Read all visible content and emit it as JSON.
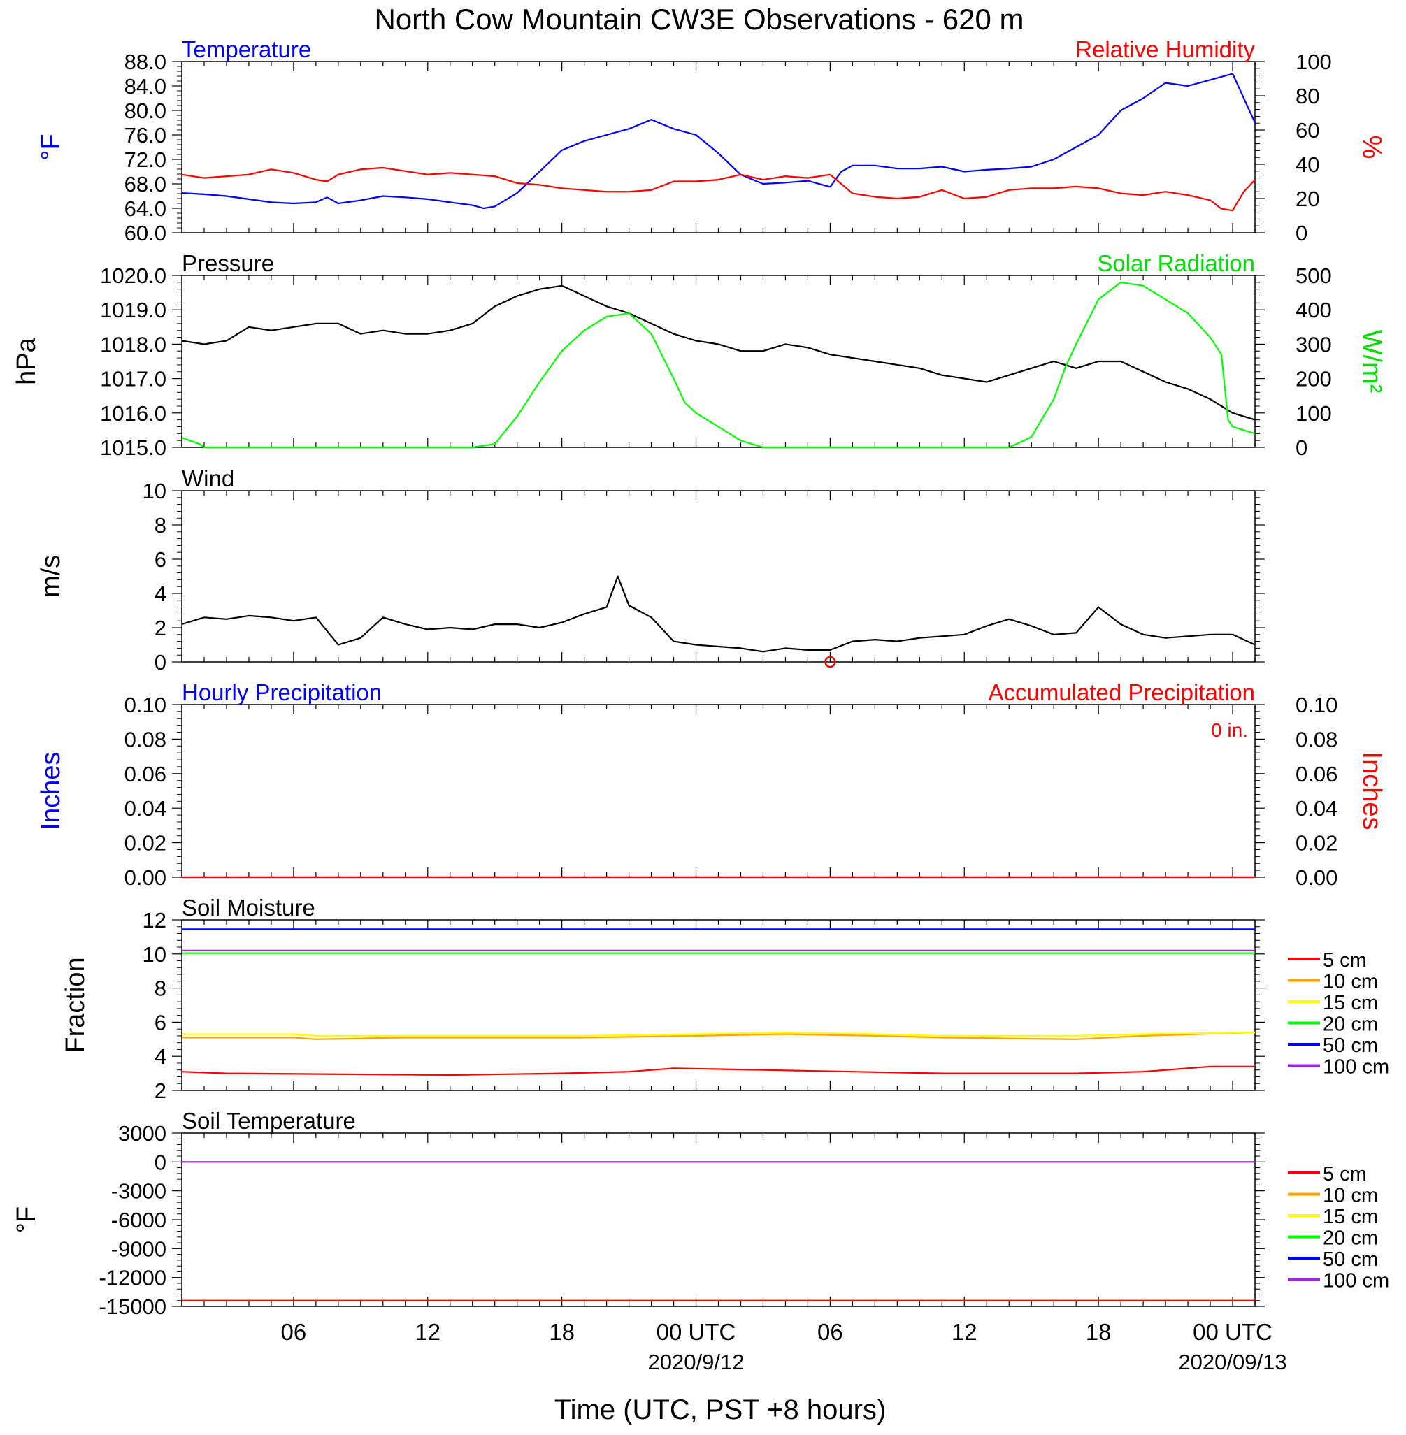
{
  "title": "North Cow Mountain CW3E Observations - 620 m",
  "xlabel": "Time (UTC, PST +8 hours)",
  "x_ticks": [
    {
      "label": "06",
      "hour": 6
    },
    {
      "label": "12",
      "hour": 12
    },
    {
      "label": "18",
      "hour": 18
    },
    {
      "label": "00 UTC",
      "hour": 24,
      "date": "2020/9/12"
    },
    {
      "label": "06",
      "hour": 30
    },
    {
      "label": "12",
      "hour": 36
    },
    {
      "label": "18",
      "hour": 42
    },
    {
      "label": "00 UTC",
      "hour": 48,
      "date": "2020/09/13"
    }
  ],
  "x_range_hours": [
    1,
    49
  ],
  "legend_soil": [
    "5 cm",
    "10 cm",
    "15 cm",
    "20 cm",
    "50 cm",
    "100 cm"
  ],
  "legend_colors": [
    "#ff0000",
    "#ffa500",
    "#ffff00",
    "#00ff00",
    "#0000ff",
    "#a020f0"
  ],
  "chart_data": [
    {
      "type": "line",
      "panel": "temperature-humidity",
      "left_title": "Temperature",
      "right_title": "Relative Humidity",
      "ylabel_left": "°F",
      "ylabel_right": "%",
      "ylim_left": [
        60,
        88
      ],
      "ylim_right": [
        0,
        100
      ],
      "yticks_left": [
        "60.0",
        "64.0",
        "68.0",
        "72.0",
        "76.0",
        "80.0",
        "84.0",
        "88.0"
      ],
      "yticks_right": [
        "0",
        "20",
        "40",
        "60",
        "80",
        "100"
      ],
      "series": [
        {
          "name": "Temperature",
          "color": "#0000ff",
          "axis": "left",
          "x": [
            1,
            2,
            3,
            4,
            5,
            6,
            7,
            7.5,
            8,
            9,
            10,
            11,
            12,
            13,
            14,
            14.5,
            15,
            16,
            17,
            18,
            19,
            20,
            21,
            22,
            23,
            24,
            25,
            26,
            27,
            28,
            29,
            30,
            30.5,
            31,
            32,
            33,
            34,
            35,
            36,
            37,
            38,
            39,
            40,
            41,
            42,
            43,
            44,
            45,
            46,
            47,
            48,
            48.5,
            49
          ],
          "y": [
            66.5,
            66.3,
            66,
            65.5,
            65,
            64.8,
            65,
            65.8,
            64.8,
            65.3,
            66,
            65.8,
            65.5,
            65,
            64.5,
            64,
            64.3,
            66.5,
            70,
            73.5,
            75,
            76,
            77,
            78.5,
            77,
            76,
            73,
            69.5,
            68,
            68.2,
            68.5,
            67.5,
            70,
            71,
            71,
            70.5,
            70.5,
            70.8,
            70,
            70.3,
            70.5,
            70.8,
            72,
            74,
            76,
            80,
            82,
            84.5,
            84,
            85,
            86,
            82,
            78
          ]
        },
        {
          "name": "Relative Humidity",
          "color": "#ff0000",
          "axis": "right",
          "x": [
            1,
            2,
            3,
            4,
            5,
            6,
            7,
            7.5,
            8,
            9,
            10,
            11,
            12,
            13,
            14,
            15,
            16,
            17,
            18,
            19,
            20,
            21,
            22,
            23,
            24,
            25,
            26,
            27,
            28,
            29,
            30,
            31,
            32,
            33,
            34,
            35,
            36,
            37,
            38,
            39,
            40,
            41,
            42,
            43,
            44,
            45,
            46,
            47,
            47.5,
            48,
            48.5,
            49
          ],
          "y": [
            34,
            32,
            33,
            34,
            37,
            35,
            31,
            30,
            34,
            37,
            38,
            36,
            34,
            35,
            34,
            33,
            29,
            28,
            26,
            25,
            24,
            24,
            25,
            30,
            30,
            31,
            34,
            31,
            33,
            32,
            34,
            23,
            21,
            20,
            21,
            25,
            20,
            21,
            25,
            26,
            26,
            27,
            26,
            23,
            22,
            24,
            22,
            19,
            14,
            13,
            24,
            31
          ]
        }
      ]
    },
    {
      "type": "line",
      "panel": "pressure-solar",
      "left_title": "Pressure",
      "right_title": "Solar Radiation",
      "ylabel_left": "hPa",
      "ylabel_right": "W/m²",
      "ylim_left": [
        1015,
        1020
      ],
      "ylim_right": [
        0,
        500
      ],
      "yticks_left": [
        "1015.0",
        "1016.0",
        "1017.0",
        "1018.0",
        "1019.0",
        "1020.0"
      ],
      "yticks_right": [
        "0",
        "100",
        "200",
        "300",
        "400",
        "500"
      ],
      "series": [
        {
          "name": "Pressure",
          "color": "#000000",
          "axis": "left",
          "x": [
            1,
            2,
            3,
            4,
            5,
            6,
            7,
            8,
            9,
            10,
            11,
            12,
            13,
            14,
            15,
            16,
            17,
            18,
            19,
            20,
            21,
            22,
            23,
            24,
            25,
            26,
            27,
            28,
            29,
            30,
            31,
            32,
            33,
            34,
            35,
            36,
            37,
            38,
            39,
            40,
            41,
            42,
            43,
            44,
            45,
            46,
            47,
            48,
            49
          ],
          "y": [
            1018.1,
            1018.0,
            1018.1,
            1018.5,
            1018.4,
            1018.5,
            1018.6,
            1018.6,
            1018.3,
            1018.4,
            1018.3,
            1018.3,
            1018.4,
            1018.6,
            1019.1,
            1019.4,
            1019.6,
            1019.7,
            1019.4,
            1019.1,
            1018.9,
            1018.6,
            1018.3,
            1018.1,
            1018.0,
            1017.8,
            1017.8,
            1018.0,
            1017.9,
            1017.7,
            1017.6,
            1017.5,
            1017.4,
            1017.3,
            1017.1,
            1017.0,
            1016.9,
            1017.1,
            1017.3,
            1017.5,
            1017.3,
            1017.5,
            1017.5,
            1017.2,
            1016.9,
            1016.7,
            1016.4,
            1016.0,
            1015.8
          ]
        },
        {
          "name": "Solar Radiation",
          "color": "#00ff00",
          "axis": "right",
          "x": [
            1,
            1.8,
            2,
            14,
            15,
            16,
            17,
            18,
            19,
            20,
            21,
            22,
            23,
            23.5,
            24,
            25,
            26,
            27,
            28,
            38,
            39,
            40,
            40.5,
            41,
            42,
            43,
            44,
            45,
            46,
            47,
            47.5,
            47.8,
            48,
            49
          ],
          "y": [
            28,
            10,
            0,
            0,
            10,
            90,
            190,
            280,
            340,
            380,
            390,
            330,
            200,
            130,
            100,
            60,
            20,
            0,
            0,
            0,
            30,
            140,
            230,
            300,
            430,
            480,
            470,
            430,
            390,
            320,
            270,
            80,
            60,
            40
          ]
        }
      ]
    },
    {
      "type": "line",
      "panel": "wind",
      "left_title": "Wind",
      "ylabel_left": "m/s",
      "ylim_left": [
        0,
        10
      ],
      "yticks_left": [
        "0",
        "2",
        "4",
        "6",
        "8",
        "10"
      ],
      "series": [
        {
          "name": "Wind",
          "color": "#000000",
          "axis": "left",
          "x": [
            1,
            2,
            3,
            4,
            5,
            6,
            7,
            8,
            9,
            10,
            11,
            12,
            13,
            14,
            15,
            16,
            17,
            18,
            19,
            20,
            20.5,
            21,
            22,
            23,
            24,
            25,
            26,
            27,
            28,
            29,
            30,
            31,
            32,
            33,
            34,
            35,
            36,
            37,
            38,
            39,
            40,
            41,
            42,
            43,
            44,
            45,
            46,
            47,
            48,
            49
          ],
          "y": [
            2.2,
            2.6,
            2.5,
            2.7,
            2.6,
            2.4,
            2.6,
            1.0,
            1.4,
            2.6,
            2.2,
            1.9,
            2.0,
            1.9,
            2.2,
            2.2,
            2.0,
            2.3,
            2.8,
            3.2,
            5.0,
            3.3,
            2.6,
            1.2,
            1.0,
            0.9,
            0.8,
            0.6,
            0.8,
            0.7,
            0.7,
            1.2,
            1.3,
            1.2,
            1.4,
            1.5,
            1.6,
            2.1,
            2.5,
            2.1,
            1.6,
            1.7,
            3.2,
            2.2,
            1.6,
            1.4,
            1.5,
            1.6,
            1.6,
            1.0
          ]
        }
      ]
    },
    {
      "type": "line",
      "panel": "precipitation",
      "left_title": "Hourly Precipitation",
      "right_title": "Accumulated Precipitation",
      "annotation": "0 in.",
      "ylabel_left": "Inches",
      "ylabel_right": "Inches",
      "ylim_left": [
        0,
        0.1
      ],
      "ylim_right": [
        0,
        0.1
      ],
      "yticks_left": [
        "0.00",
        "0.02",
        "0.04",
        "0.06",
        "0.08",
        "0.10"
      ],
      "yticks_right": [
        "0.00",
        "0.02",
        "0.04",
        "0.06",
        "0.08",
        "0.10"
      ],
      "series": [
        {
          "name": "Hourly Precipitation",
          "color": "#0000ff",
          "axis": "left",
          "x": [
            1,
            49
          ],
          "y": [
            0,
            0
          ]
        },
        {
          "name": "Accumulated Precipitation",
          "color": "#ff0000",
          "axis": "left",
          "x": [
            1,
            49
          ],
          "y": [
            0,
            0
          ]
        }
      ]
    },
    {
      "type": "line",
      "panel": "soil-moisture",
      "left_title": "Soil Moisture",
      "ylabel_left": "Fraction",
      "ylim_left": [
        2,
        12
      ],
      "yticks_left": [
        "2",
        "4",
        "6",
        "8",
        "10",
        "12"
      ],
      "series": [
        {
          "name": "5 cm",
          "color": "#ff0000",
          "axis": "left",
          "x": [
            1,
            3,
            13,
            18,
            21,
            23,
            27,
            31,
            35,
            41,
            44,
            47,
            49
          ],
          "y": [
            3.1,
            3.0,
            2.9,
            3.0,
            3.1,
            3.3,
            3.2,
            3.1,
            3.0,
            3.0,
            3.1,
            3.4,
            3.4
          ]
        },
        {
          "name": "10 cm",
          "color": "#ffa500",
          "axis": "left",
          "x": [
            1,
            6,
            7,
            11,
            19,
            24,
            28,
            32,
            35,
            41,
            44,
            49
          ],
          "y": [
            5.1,
            5.1,
            5.0,
            5.1,
            5.1,
            5.2,
            5.3,
            5.2,
            5.1,
            5.0,
            5.2,
            5.4
          ]
        },
        {
          "name": "15 cm",
          "color": "#ffff00",
          "axis": "left",
          "x": [
            1,
            6,
            7,
            11,
            19,
            24,
            28,
            32,
            35,
            41,
            44,
            49
          ],
          "y": [
            5.3,
            5.3,
            5.2,
            5.2,
            5.2,
            5.3,
            5.4,
            5.3,
            5.2,
            5.2,
            5.3,
            5.4
          ]
        },
        {
          "name": "20 cm",
          "color": "#00ff00",
          "axis": "left",
          "x": [
            1,
            49
          ],
          "y": [
            10.05,
            10.05
          ]
        },
        {
          "name": "50 cm",
          "color": "#0000ff",
          "axis": "left",
          "x": [
            1,
            12,
            49
          ],
          "y": [
            11.45,
            11.45,
            11.45
          ]
        },
        {
          "name": "100 cm",
          "color": "#a020f0",
          "axis": "left",
          "x": [
            1,
            16,
            49
          ],
          "y": [
            10.2,
            10.2,
            10.2
          ]
        }
      ]
    },
    {
      "type": "line",
      "panel": "soil-temperature",
      "left_title": "Soil Temperature",
      "ylabel_left": "°F",
      "ylim_left": [
        -15000,
        3000
      ],
      "yticks_left": [
        "-15000",
        "-12000",
        "-9000",
        "-6000",
        "-3000",
        "0",
        "3000"
      ],
      "series": [
        {
          "name": "5 cm",
          "color": "#ff0000",
          "axis": "left",
          "x": [
            1,
            49
          ],
          "y": [
            -14400,
            -14400
          ]
        },
        {
          "name": "100 cm",
          "color": "#a020f0",
          "axis": "left",
          "x": [
            1,
            49
          ],
          "y": [
            0,
            0
          ]
        }
      ]
    }
  ]
}
